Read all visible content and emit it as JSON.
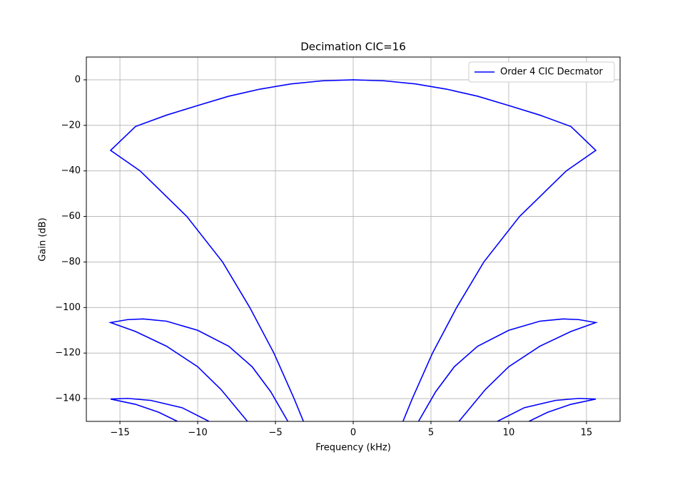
{
  "chart_data": {
    "type": "line",
    "title": "Decimation CIC=16",
    "x_label": "Frequency (kHz)",
    "y_label": "Gain (dB)",
    "x": [
      -3.2,
      -3.8,
      -5.1,
      -6.65,
      -8.4,
      -10.7,
      -13.7,
      -15.6,
      -14,
      -12,
      -10,
      -8,
      -6,
      -4,
      -2,
      0,
      2,
      4,
      6,
      8,
      10,
      12,
      14,
      15.6,
      13.7,
      10.7,
      8.4,
      6.65,
      5.1,
      3.8,
      3.2,
      null,
      -6.8,
      -8.5,
      -10,
      -12,
      -14,
      -15.6,
      -14.5,
      -13.5,
      -12,
      -10,
      -8,
      -6.5,
      -5.3,
      -4.2,
      null,
      6.8,
      8.5,
      10,
      12,
      14,
      15.6,
      14.5,
      13.5,
      12,
      10,
      8,
      6.5,
      5.3,
      4.2,
      null,
      -11.3,
      -12.5,
      -14,
      -15.6,
      -14.5,
      -13,
      -11,
      -9.27,
      null,
      11.3,
      12.5,
      14,
      15.6,
      14.5,
      13,
      11,
      9.27
    ],
    "series": [
      {
        "name": "Order 4 CIC Decmator",
        "color": "#0000ff",
        "values": [
          -150,
          -140,
          -120,
          -100,
          -80,
          -60,
          -40,
          -31,
          -20.5,
          -15.5,
          -11.3,
          -7.2,
          -4.1,
          -1.8,
          -0.45,
          0,
          -0.45,
          -1.8,
          -4.1,
          -7.2,
          -11.3,
          -15.5,
          -20.5,
          -31,
          -40,
          -60,
          -80,
          -100,
          -120,
          -140,
          -150,
          null,
          -150,
          -136,
          -126,
          -117,
          -110.5,
          -106.6,
          -105.3,
          -105,
          -106,
          -110,
          -117,
          -126,
          -137,
          -150,
          null,
          -150,
          -136,
          -126,
          -117,
          -110.5,
          -106.6,
          -105.3,
          -105,
          -106,
          -110,
          -117,
          -126,
          -137,
          -150,
          null,
          -150,
          -146,
          -142.5,
          -140.2,
          -139.9,
          -140.8,
          -144,
          -150,
          null,
          -150,
          -146,
          -142.5,
          -140.2,
          -139.9,
          -140.8,
          -144,
          -150
        ]
      }
    ],
    "xlim": [
      -17.16,
      17.16
    ],
    "ylim": [
      -150,
      10
    ],
    "xticks": [
      {
        "value": -15,
        "label": "−15"
      },
      {
        "value": -10,
        "label": "−10"
      },
      {
        "value": -5,
        "label": "−5"
      },
      0,
      5,
      10,
      15
    ],
    "yticks": [
      0,
      {
        "value": -20,
        "label": "−20"
      },
      {
        "value": -40,
        "label": "−40"
      },
      {
        "value": -60,
        "label": "−60"
      },
      {
        "value": -80,
        "label": "−80"
      },
      {
        "value": -100,
        "label": "−100"
      },
      {
        "value": -120,
        "label": "−120"
      },
      {
        "value": -140,
        "label": "−140"
      }
    ],
    "grid": true,
    "legend": "upper right"
  }
}
